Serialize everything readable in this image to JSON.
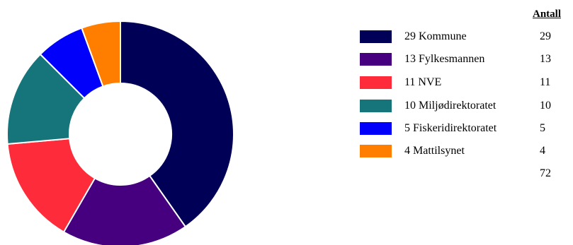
{
  "chart_data": {
    "type": "pie",
    "variant": "donut",
    "values_header": "Antall",
    "slices": [
      {
        "label": "29 Kommune",
        "value": 29,
        "count_text": "29",
        "color": "#000057"
      },
      {
        "label": "13 Fylkesmannen",
        "value": 13,
        "count_text": "13",
        "color": "#46007f"
      },
      {
        "label": "11 NVE",
        "value": 11,
        "count_text": "11",
        "color": "#fe2c3a"
      },
      {
        "label": "10 Miljødirektoratet",
        "value": 10,
        "count_text": "10",
        "color": "#15757a"
      },
      {
        "label": "5 Fiskeridirektoratet",
        "value": 5,
        "count_text": "5",
        "color": "#0000fb"
      },
      {
        "label": "4 Mattilsynet",
        "value": 4,
        "count_text": "4",
        "color": "#ff7e00"
      }
    ],
    "total": "72",
    "legend_position": "right"
  }
}
